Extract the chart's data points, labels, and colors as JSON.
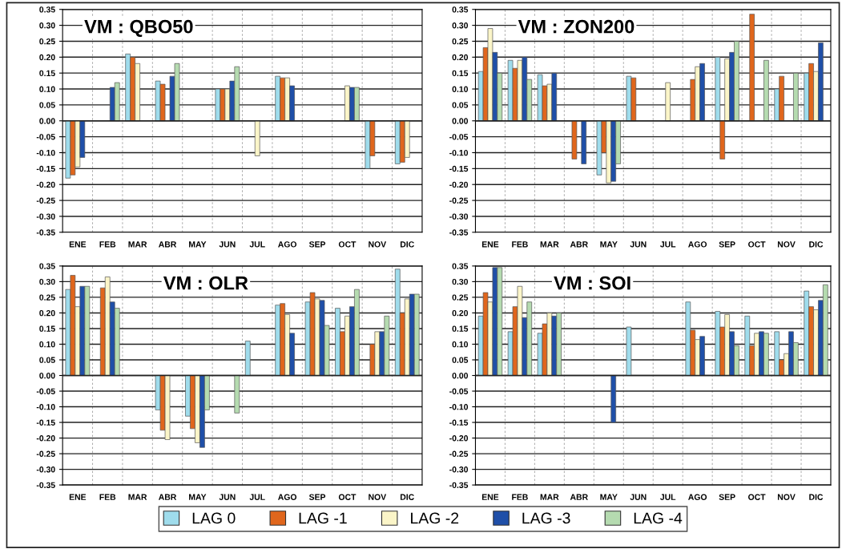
{
  "chart_data": [
    {
      "type": "bar",
      "title": "VM : QBO50",
      "categories": [
        "ENE",
        "FEB",
        "MAR",
        "ABR",
        "MAY",
        "JUN",
        "JUL",
        "AGO",
        "SEP",
        "OCT",
        "NOV",
        "DIC"
      ],
      "ylim": [
        -0.35,
        0.35
      ],
      "yticks": [
        {
          "value": -0.35,
          "label": "-0.35"
        },
        {
          "value": -0.3,
          "label": "-0.30"
        },
        {
          "value": -0.25,
          "label": "-0.25"
        },
        {
          "value": -0.2,
          "label": "-0.20"
        },
        {
          "value": -0.15,
          "label": "-0.15"
        },
        {
          "value": -0.1,
          "label": "-0.10"
        },
        {
          "value": -0.05,
          "label": "-0.05"
        },
        {
          "value": 0,
          "label": "0.00"
        },
        {
          "value": 0.05,
          "label": "0.05"
        },
        {
          "value": 0.1,
          "label": "0.10"
        },
        {
          "value": 0.15,
          "label": "0.15"
        },
        {
          "value": 0.2,
          "label": "0.20"
        },
        {
          "value": 0.25,
          "label": "0.25"
        },
        {
          "value": 0.3,
          "label": "0.30"
        },
        {
          "value": 0.35,
          "label": "0.35"
        }
      ],
      "grid": true,
      "legend": "bottom",
      "series": [
        {
          "name": "LAG 0",
          "color": "#9fdcec",
          "values": [
            -0.18,
            null,
            0.21,
            0.125,
            null,
            0.1,
            null,
            0.14,
            null,
            null,
            -0.15,
            -0.135
          ]
        },
        {
          "name": "LAG -1",
          "color": "#e0661c",
          "values": [
            -0.17,
            null,
            0.2,
            0.115,
            null,
            0.1,
            null,
            0.135,
            null,
            null,
            -0.11,
            -0.13
          ]
        },
        {
          "name": "LAG -2",
          "color": "#fbf5c8",
          "values": [
            -0.145,
            null,
            0.18,
            null,
            null,
            0.1,
            -0.11,
            0.135,
            null,
            0.11,
            null,
            -0.115
          ]
        },
        {
          "name": "LAG -3",
          "color": "#1f4fa8",
          "values": [
            -0.115,
            0.105,
            null,
            0.14,
            null,
            0.125,
            null,
            0.11,
            null,
            0.105,
            null,
            null
          ]
        },
        {
          "name": "LAG -4",
          "color": "#b5dbb0",
          "values": [
            null,
            0.12,
            null,
            0.18,
            null,
            0.17,
            null,
            null,
            null,
            0.105,
            null,
            null
          ]
        }
      ]
    },
    {
      "type": "bar",
      "title": "VM : ZON200",
      "categories": [
        "ENE",
        "FEB",
        "MAR",
        "ABR",
        "MAY",
        "JUN",
        "JUL",
        "AGO",
        "SEP",
        "OCT",
        "NOV",
        "DIC"
      ],
      "ylim": [
        -0.35,
        0.35
      ],
      "yticks": [
        {
          "value": -0.35,
          "label": "-0.35"
        },
        {
          "value": -0.3,
          "label": "-0.30"
        },
        {
          "value": -0.25,
          "label": "-0.25"
        },
        {
          "value": -0.2,
          "label": "-0.20"
        },
        {
          "value": -0.15,
          "label": "-0.15"
        },
        {
          "value": -0.1,
          "label": "-0.10"
        },
        {
          "value": -0.05,
          "label": "-0.05"
        },
        {
          "value": 0,
          "label": "0.00"
        },
        {
          "value": 0.05,
          "label": "0.05"
        },
        {
          "value": 0.1,
          "label": "0.10"
        },
        {
          "value": 0.15,
          "label": "0.15"
        },
        {
          "value": 0.2,
          "label": "0.20"
        },
        {
          "value": 0.25,
          "label": "0.25"
        },
        {
          "value": 0.3,
          "label": "0.30"
        },
        {
          "value": 0.35,
          "label": "0.35"
        }
      ],
      "grid": true,
      "series": [
        {
          "color": "#9fdcec",
          "values": [
            0.155,
            0.19,
            0.145,
            null,
            -0.17,
            0.14,
            null,
            null,
            0.2,
            null,
            0.1,
            0.15
          ]
        },
        {
          "color": "#e0661c",
          "values": [
            0.23,
            0.165,
            0.11,
            -0.12,
            -0.1,
            0.135,
            null,
            0.13,
            -0.12,
            0.335,
            0.14,
            0.18
          ]
        },
        {
          "color": "#fbf5c8",
          "values": [
            0.29,
            0.19,
            0.115,
            null,
            -0.195,
            null,
            0.12,
            0.17,
            0.195,
            null,
            null,
            0.155
          ]
        },
        {
          "color": "#1f4fa8",
          "values": [
            0.215,
            0.2,
            0.15,
            -0.135,
            -0.19,
            null,
            null,
            0.18,
            0.215,
            null,
            null,
            0.245
          ]
        },
        {
          "color": "#b5dbb0",
          "values": [
            0.15,
            0.13,
            null,
            null,
            -0.135,
            null,
            null,
            null,
            0.25,
            0.19,
            0.15,
            null
          ]
        }
      ]
    },
    {
      "type": "bar",
      "title": "VM : OLR",
      "categories": [
        "ENE",
        "FEB",
        "MAR",
        "ABR",
        "MAY",
        "JUN",
        "JUL",
        "AGO",
        "SEP",
        "OCT",
        "NOV",
        "DIC"
      ],
      "ylim": [
        -0.35,
        0.35
      ],
      "yticks": [
        {
          "value": -0.35,
          "label": "-0.35"
        },
        {
          "value": -0.3,
          "label": "-0.30"
        },
        {
          "value": -0.25,
          "label": "-0.25"
        },
        {
          "value": -0.2,
          "label": "-0.20"
        },
        {
          "value": -0.15,
          "label": "-0.15"
        },
        {
          "value": -0.1,
          "label": "-0.10"
        },
        {
          "value": -0.05,
          "label": "-0.05"
        },
        {
          "value": 0,
          "label": "0.00"
        },
        {
          "value": 0.05,
          "label": "0.05"
        },
        {
          "value": 0.1,
          "label": "0.10"
        },
        {
          "value": 0.15,
          "label": "0.15"
        },
        {
          "value": 0.2,
          "label": "0.20"
        },
        {
          "value": 0.25,
          "label": "0.25"
        },
        {
          "value": 0.3,
          "label": "0.30"
        },
        {
          "value": 0.35,
          "label": "0.35"
        }
      ],
      "grid": true,
      "series": [
        {
          "color": "#9fdcec",
          "values": [
            0.275,
            null,
            null,
            -0.11,
            -0.13,
            null,
            0.11,
            0.225,
            0.235,
            0.215,
            null,
            0.34
          ]
        },
        {
          "color": "#e0661c",
          "values": [
            0.32,
            0.28,
            null,
            -0.175,
            -0.17,
            null,
            null,
            0.23,
            0.265,
            0.14,
            0.1,
            0.2
          ]
        },
        {
          "color": "#fbf5c8",
          "values": [
            0.22,
            0.315,
            null,
            -0.205,
            -0.215,
            null,
            null,
            0.195,
            0.245,
            0.19,
            0.14,
            0.245
          ]
        },
        {
          "color": "#1f4fa8",
          "values": [
            0.285,
            0.235,
            null,
            null,
            -0.23,
            null,
            null,
            0.135,
            0.24,
            0.22,
            0.14,
            0.26
          ]
        },
        {
          "color": "#b5dbb0",
          "values": [
            0.285,
            0.215,
            null,
            null,
            -0.11,
            -0.12,
            null,
            null,
            0.16,
            0.275,
            0.19,
            0.26
          ]
        }
      ]
    },
    {
      "type": "bar",
      "title": "VM : SOI",
      "categories": [
        "ENE",
        "FEB",
        "MAR",
        "ABR",
        "MAY",
        "JUN",
        "JUL",
        "AGO",
        "SEP",
        "OCT",
        "NOV",
        "DIC"
      ],
      "ylim": [
        -0.35,
        0.35
      ],
      "yticks": [
        {
          "value": -0.35,
          "label": "-0.35"
        },
        {
          "value": -0.3,
          "label": "-0.30"
        },
        {
          "value": -0.25,
          "label": "-0.25"
        },
        {
          "value": -0.2,
          "label": "-0.20"
        },
        {
          "value": -0.15,
          "label": "-0.15"
        },
        {
          "value": -0.1,
          "label": "-0.10"
        },
        {
          "value": -0.05,
          "label": "-0.05"
        },
        {
          "value": 0,
          "label": "0.00"
        },
        {
          "value": 0.05,
          "label": "0.05"
        },
        {
          "value": 0.1,
          "label": "0.10"
        },
        {
          "value": 0.15,
          "label": "0.15"
        },
        {
          "value": 0.2,
          "label": "0.20"
        },
        {
          "value": 0.25,
          "label": "0.25"
        },
        {
          "value": 0.3,
          "label": "0.30"
        },
        {
          "value": 0.35,
          "label": "0.35"
        }
      ],
      "grid": true,
      "series": [
        {
          "color": "#9fdcec",
          "values": [
            0.19,
            0.14,
            0.135,
            null,
            null,
            0.155,
            null,
            0.235,
            0.205,
            0.19,
            0.14,
            0.27
          ]
        },
        {
          "color": "#e0661c",
          "values": [
            0.265,
            0.22,
            0.165,
            null,
            null,
            null,
            null,
            0.145,
            0.155,
            0.095,
            0.05,
            0.22
          ]
        },
        {
          "color": "#fbf5c8",
          "values": [
            0.235,
            0.285,
            0.2,
            null,
            null,
            null,
            null,
            0.115,
            0.195,
            0.135,
            0.07,
            0.21
          ]
        },
        {
          "color": "#1f4fa8",
          "values": [
            0.345,
            0.185,
            0.19,
            null,
            -0.15,
            null,
            null,
            0.125,
            0.14,
            0.14,
            0.14,
            0.24
          ]
        },
        {
          "color": "#b5dbb0",
          "values": [
            0.345,
            0.235,
            0.2,
            null,
            null,
            null,
            null,
            null,
            0.095,
            0.135,
            0.105,
            0.29
          ]
        }
      ]
    }
  ]
}
